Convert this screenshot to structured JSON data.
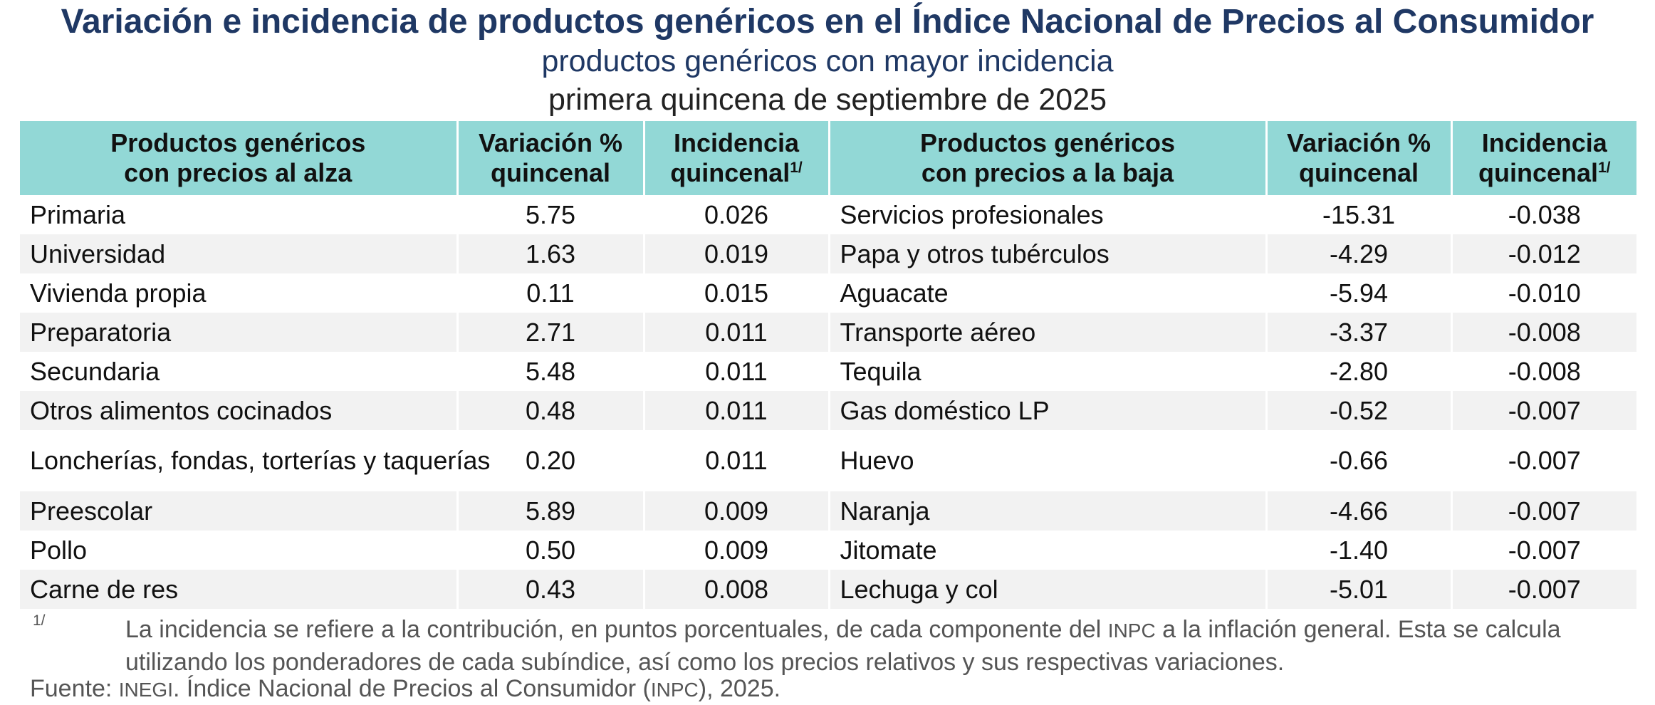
{
  "header": {
    "title": "Variación e incidencia de productos genéricos en el Índice Nacional de Precios al Consumidor",
    "subtitle": "productos genéricos con mayor incidencia",
    "period": "primera quincena de septiembre de 2025"
  },
  "table": {
    "columns": [
      {
        "line1": "Productos genéricos",
        "line2": "con precios al alza",
        "sup": ""
      },
      {
        "line1": "Variación %",
        "line2": "quincenal",
        "sup": ""
      },
      {
        "line1": "Incidencia",
        "line2": "quincenal",
        "sup": "1/"
      },
      {
        "line1": "Productos genéricos",
        "line2": "con precios a la baja",
        "sup": ""
      },
      {
        "line1": "Variación %",
        "line2": "quincenal",
        "sup": ""
      },
      {
        "line1": "Incidencia",
        "line2": "quincenal",
        "sup": "1/"
      }
    ],
    "rows": [
      {
        "up_name": "Primaria",
        "up_var": "5.75",
        "up_inc": "0.026",
        "down_name": "Servicios profesionales",
        "down_var": "-15.31",
        "down_inc": "-0.038"
      },
      {
        "up_name": "Universidad",
        "up_var": "1.63",
        "up_inc": "0.019",
        "down_name": "Papa y otros tubérculos",
        "down_var": "-4.29",
        "down_inc": "-0.012"
      },
      {
        "up_name": "Vivienda propia",
        "up_var": "0.11",
        "up_inc": "0.015",
        "down_name": "Aguacate",
        "down_var": "-5.94",
        "down_inc": "-0.010"
      },
      {
        "up_name": "Preparatoria",
        "up_var": "2.71",
        "up_inc": "0.011",
        "down_name": "Transporte aéreo",
        "down_var": "-3.37",
        "down_inc": "-0.008"
      },
      {
        "up_name": "Secundaria",
        "up_var": "5.48",
        "up_inc": "0.011",
        "down_name": "Tequila",
        "down_var": "-2.80",
        "down_inc": "-0.008"
      },
      {
        "up_name": "Otros alimentos cocinados",
        "up_var": "0.48",
        "up_inc": "0.011",
        "down_name": "Gas doméstico LP",
        "down_var": "-0.52",
        "down_inc": "-0.007"
      },
      {
        "up_name": "Loncherías, fondas, torterías y taquerías",
        "up_var": "0.20",
        "up_inc": "0.011",
        "down_name": "Huevo",
        "down_var": "-0.66",
        "down_inc": "-0.007"
      },
      {
        "up_name": "Preescolar",
        "up_var": "5.89",
        "up_inc": "0.009",
        "down_name": "Naranja",
        "down_var": "-4.66",
        "down_inc": "-0.007"
      },
      {
        "up_name": "Pollo",
        "up_var": "0.50",
        "up_inc": "0.009",
        "down_name": "Jitomate",
        "down_var": "-1.40",
        "down_inc": "-0.007"
      },
      {
        "up_name": "Carne de res",
        "up_var": "0.43",
        "up_inc": "0.008",
        "down_name": "Lechuga y col",
        "down_var": "-5.01",
        "down_inc": "-0.007"
      }
    ]
  },
  "footnote": {
    "mark": "1/",
    "text_part1": "La incidencia se refiere a la contribución, en puntos porcentuales, de cada componente del ",
    "text_abbr": "INPC",
    "text_part2": " a la inflación general. Esta se calcula utilizando los ponderadores de cada subíndice, así como los precios relativos y sus respectivas variaciones."
  },
  "source": {
    "label": "Fuente: ",
    "org": "INEGI",
    "text_part1": ". Índice Nacional de Precios al Consumidor (",
    "abbr": "INPC",
    "text_part2": "), 2025."
  }
}
